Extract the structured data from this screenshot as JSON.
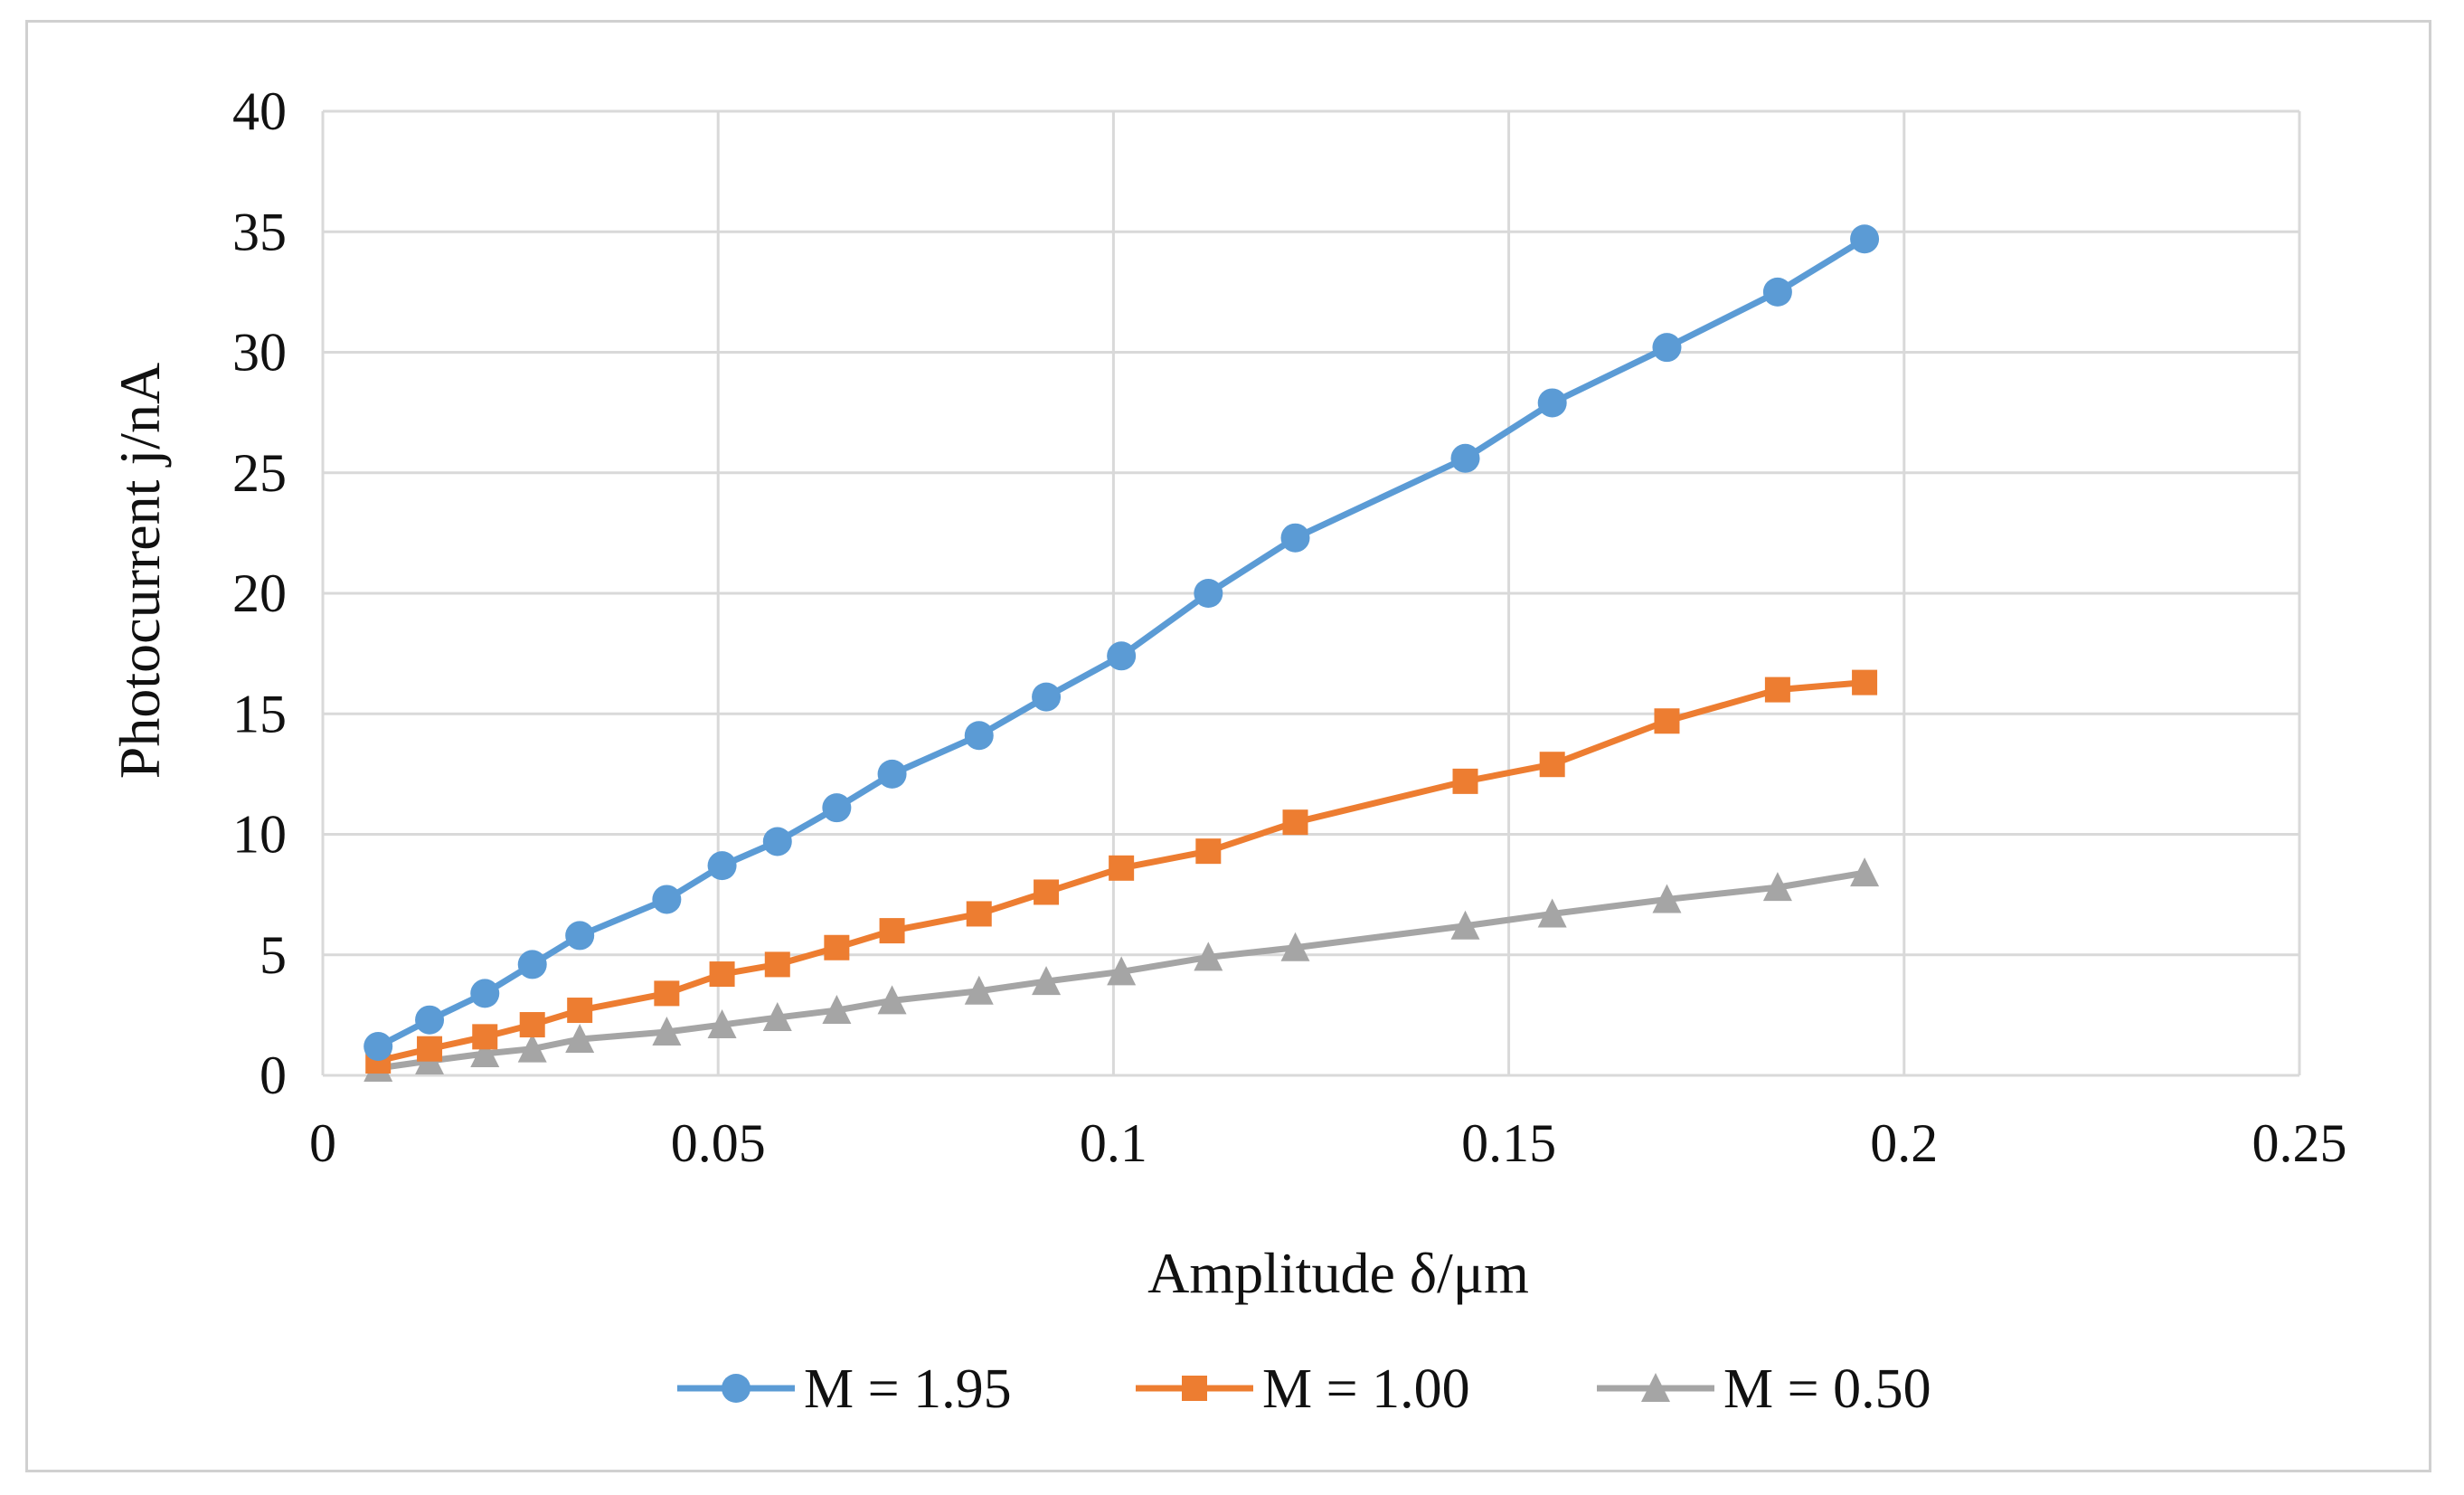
{
  "chart_data": {
    "type": "line",
    "title": "",
    "xlabel": "Amplitude δ/μm",
    "ylabel": "Photocurrent  j/nA",
    "xlim": [
      0,
      0.25
    ],
    "ylim": [
      0,
      40
    ],
    "xticks": [
      0,
      0.05,
      0.1,
      0.15,
      0.2,
      0.25
    ],
    "xtick_labels": [
      "0",
      "0.05",
      "0.1",
      "0.15",
      "0.2",
      "0.25"
    ],
    "yticks": [
      0,
      5,
      10,
      15,
      20,
      25,
      30,
      35,
      40
    ],
    "ytick_labels": [
      "0",
      "5",
      "10",
      "15",
      "20",
      "25",
      "30",
      "35",
      "40"
    ],
    "grid": true,
    "legend_position": "bottom",
    "series": [
      {
        "name": "M = 1.95",
        "color": "#5b9bd5",
        "marker": "circle",
        "x": [
          0.007,
          0.0135,
          0.0205,
          0.0265,
          0.0325,
          0.0435,
          0.0505,
          0.0575,
          0.065,
          0.072,
          0.083,
          0.0915,
          0.101,
          0.112,
          0.123,
          0.1445,
          0.1555,
          0.17,
          0.184,
          0.195
        ],
        "y": [
          1.2,
          2.3,
          3.4,
          4.6,
          5.8,
          7.3,
          8.7,
          9.7,
          11.1,
          12.5,
          14.1,
          15.7,
          17.4,
          20.0,
          22.3,
          25.6,
          27.9,
          30.2,
          32.5,
          34.7
        ]
      },
      {
        "name": "M = 1.00",
        "color": "#ed7d31",
        "marker": "square",
        "x": [
          0.007,
          0.0135,
          0.0205,
          0.0265,
          0.0325,
          0.0435,
          0.0505,
          0.0575,
          0.065,
          0.072,
          0.083,
          0.0915,
          0.101,
          0.112,
          0.123,
          0.1445,
          0.1555,
          0.17,
          0.184,
          0.195
        ],
        "y": [
          0.6,
          1.1,
          1.6,
          2.1,
          2.7,
          3.4,
          4.2,
          4.6,
          5.3,
          6.0,
          6.7,
          7.6,
          8.6,
          9.3,
          10.5,
          12.2,
          12.9,
          14.7,
          16.0,
          16.3
        ]
      },
      {
        "name": "M = 0.50",
        "color": "#a5a5a5",
        "marker": "triangle",
        "x": [
          0.007,
          0.0135,
          0.0205,
          0.0265,
          0.0325,
          0.0435,
          0.0505,
          0.0575,
          0.065,
          0.072,
          0.083,
          0.0915,
          0.101,
          0.112,
          0.123,
          0.1445,
          0.1555,
          0.17,
          0.184,
          0.195
        ],
        "y": [
          0.3,
          0.6,
          0.9,
          1.1,
          1.5,
          1.8,
          2.1,
          2.4,
          2.7,
          3.1,
          3.5,
          3.9,
          4.3,
          4.9,
          5.3,
          6.2,
          6.7,
          7.3,
          7.8,
          8.4
        ]
      }
    ]
  }
}
